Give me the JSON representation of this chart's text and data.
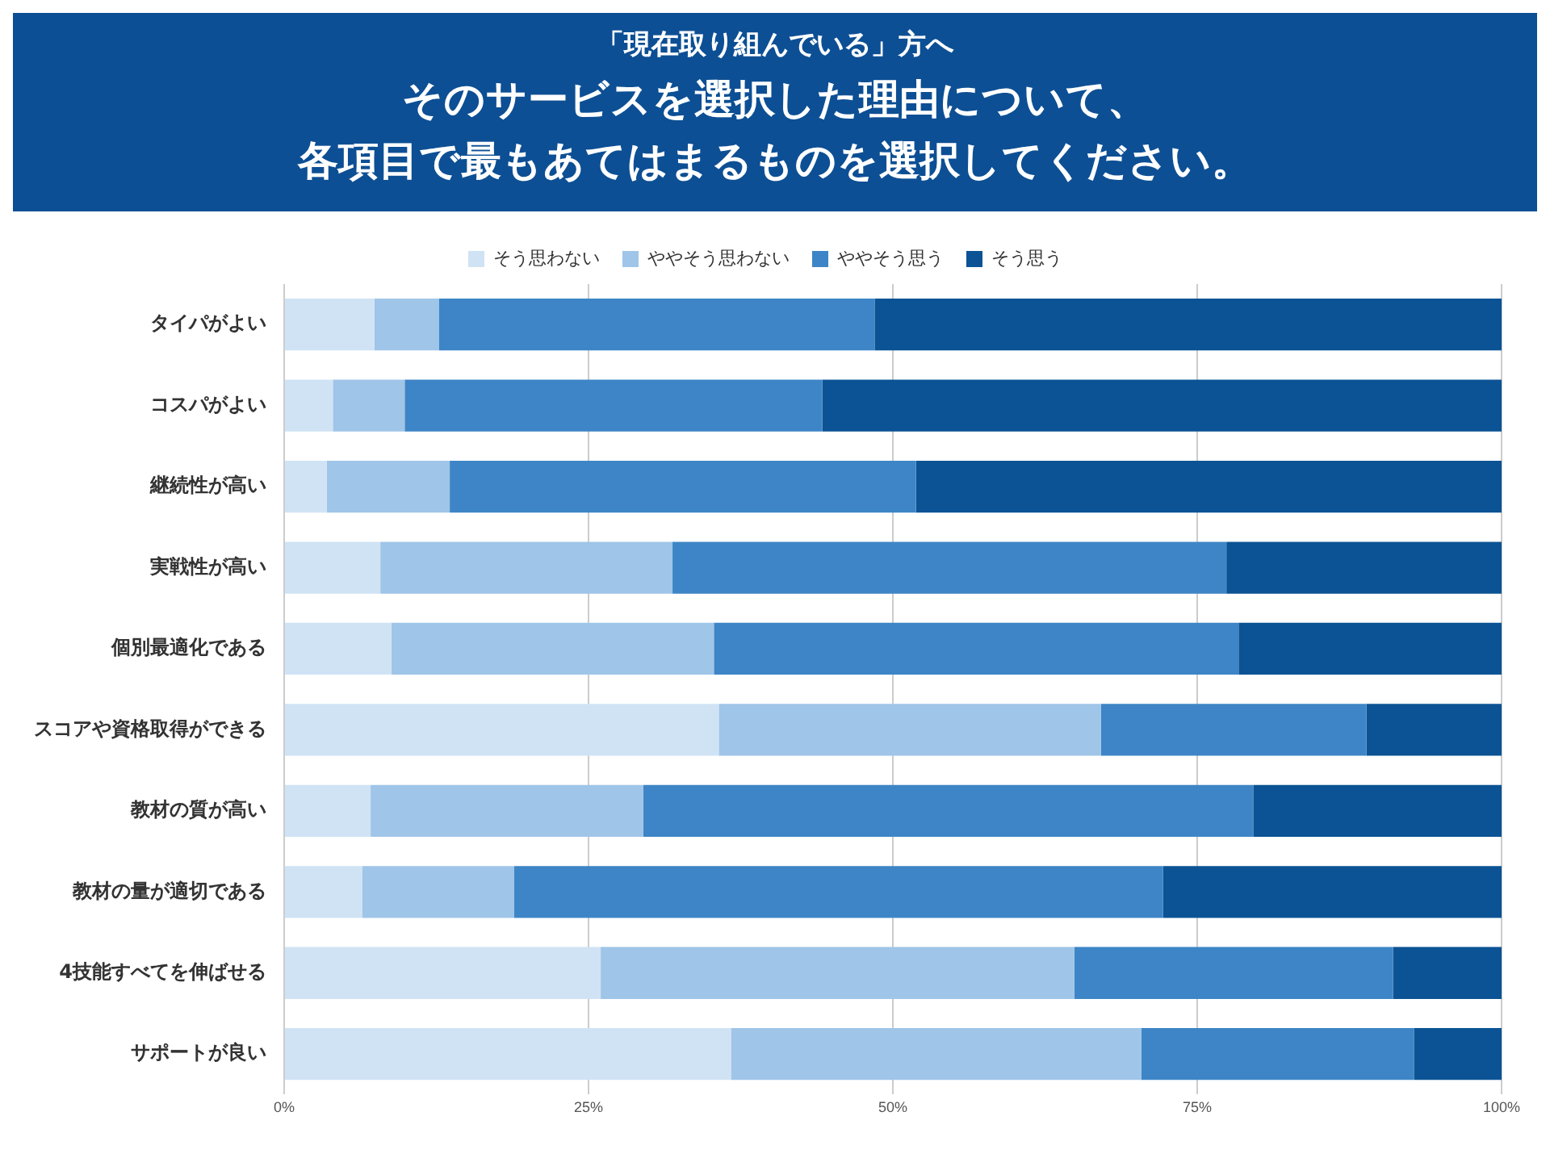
{
  "chart_data": {
    "type": "bar",
    "orientation": "horizontal",
    "stacked": true,
    "subtitle": "「現在取り組んでいる」方へ",
    "title": "そのサービスを選択した理由について、各項目で最もあてはまるものを選択してください。",
    "categories": [
      "タイパがよい",
      "コスパがよい",
      "継続性が高い",
      "実戦性が高い",
      "個別最適化である",
      "スコアや資格取得ができる",
      "教材の質が高い",
      "教材の量が適切である",
      "4技能すべてを伸ばせる",
      "サポートが良い"
    ],
    "series": [
      {
        "name": "そう思わない",
        "color": "#d0e3f5",
        "values": [
          7.4,
          4.0,
          3.5,
          7.9,
          8.8,
          35.7,
          7.1,
          6.4,
          26.0,
          36.7
        ]
      },
      {
        "name": "ややそう思わない",
        "color": "#9fc5e8",
        "values": [
          5.3,
          5.9,
          10.1,
          24.0,
          26.5,
          31.4,
          22.4,
          12.5,
          38.9,
          33.7
        ]
      },
      {
        "name": "ややそう思う",
        "color": "#3d85c6",
        "values": [
          35.8,
          34.3,
          38.3,
          45.5,
          43.1,
          21.8,
          50.1,
          53.3,
          26.2,
          22.4
        ]
      },
      {
        "name": "そう思う",
        "color": "#0b5394",
        "values": [
          51.5,
          55.8,
          48.1,
          22.6,
          21.7,
          11.1,
          20.4,
          27.8,
          8.9,
          7.2
        ]
      }
    ],
    "xlim": [
      0,
      100
    ],
    "xticks": [
      {
        "value": 0,
        "label": "0%"
      },
      {
        "value": 25,
        "label": "25%"
      },
      {
        "value": 50,
        "label": "50%"
      },
      {
        "value": 75,
        "label": "75%"
      },
      {
        "value": 100,
        "label": "100%"
      }
    ],
    "grid": "x",
    "legend": "top"
  }
}
